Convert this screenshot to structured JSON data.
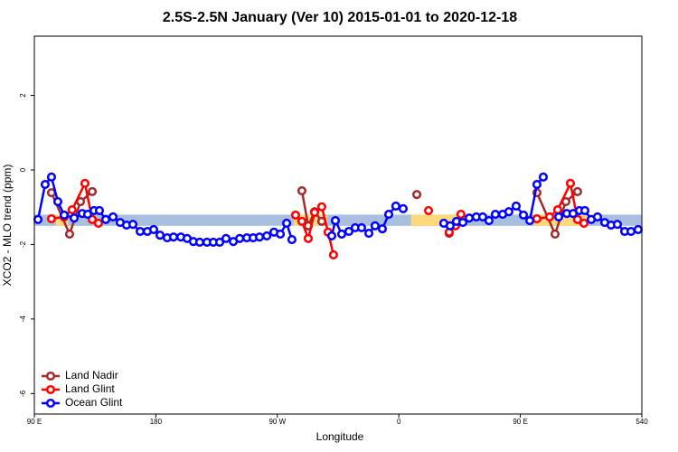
{
  "chart_data": {
    "type": "line",
    "title": "2.5S-2.5N January (Ver 10)   2015-01-01 to 2020-12-18",
    "x_label": "Longitude",
    "y_label": "XCO2 - MLO trend (ppm)",
    "xlim": [
      90,
      540
    ],
    "ylim": [
      -6.55,
      3.59
    ],
    "xticks": [
      {
        "value": 90,
        "label": "90 E"
      },
      180,
      {
        "value": 270,
        "label": "90 W"
      },
      {
        "value": 360,
        "label": "0"
      },
      {
        "value": 450,
        "label": "90 E"
      },
      540
    ],
    "yticks": [
      2,
      0,
      -2,
      -4,
      -6
    ],
    "legend": "bottomleft",
    "bands": [
      {
        "color": "#a9bfdf",
        "xlim": [
          90,
          540
        ],
        "ylim": [
          -1.5,
          -1.2
        ]
      }
    ],
    "highlights": [
      {
        "color": "#fdd87c",
        "xlim": [
          106,
          115
        ],
        "ylim": [
          -1.5,
          -1.2
        ]
      },
      {
        "color": "#fdd87c",
        "xlim": [
          282,
          307
        ],
        "ylim": [
          -1.5,
          -1.2
        ]
      },
      {
        "color": "#fdd87c",
        "xlim": [
          369,
          403
        ],
        "ylim": [
          -1.5,
          -1.2
        ]
      },
      {
        "color": "#fdd87c",
        "xlim": [
          460,
          500
        ],
        "ylim": [
          -1.5,
          -1.2
        ]
      }
    ],
    "series": [
      {
        "name": "Land Nadir",
        "color": "#a52a2a",
        "x": [
          102.7,
          116.1,
          124.2,
          132.9,
          null,
          288.2,
          292.9,
          297.6,
          302.9,
          null,
          373.3,
          null,
          397.3,
          null,
          462.3,
          475.7,
          483.7,
          492.4
        ],
        "values": [
          -0.61,
          -1.72,
          -0.85,
          -0.58,
          null,
          -0.56,
          -1.5,
          -1.12,
          -1.38,
          null,
          -0.66,
          null,
          -1.7,
          null,
          -0.61,
          -1.72,
          -0.85,
          -0.58
        ]
      },
      {
        "name": "Land Glint",
        "color": "#ff0000",
        "x": [
          102.7,
          112,
          118,
          127.5,
          132.9,
          137.5,
          null,
          283.5,
          288.2,
          292.9,
          297.6,
          302.9,
          307.6,
          311.6,
          null,
          382,
          null,
          397.3,
          402,
          406,
          null,
          462.3,
          471.7,
          477.7,
          487.1,
          492.4,
          497.1
        ],
        "values": [
          -1.31,
          -1.26,
          -1.07,
          -0.36,
          -1.33,
          -1.43,
          null,
          -1.21,
          -1.38,
          -1.84,
          -1.14,
          -0.99,
          -1.67,
          -2.28,
          null,
          -1.09,
          null,
          -1.67,
          -1.5,
          -1.19,
          null,
          -1.31,
          -1.26,
          -1.07,
          -0.36,
          -1.33,
          -1.43
        ]
      },
      {
        "name": "Ocean Glint",
        "color": "#0000ff",
        "x": [
          92.7,
          98,
          102.7,
          107.4,
          112.1,
          119.5,
          125.5,
          129.5,
          134.2,
          138.2,
          142.9,
          148.3,
          153.6,
          158.3,
          163,
          168.4,
          173.7,
          178.4,
          183.1,
          188.4,
          193.1,
          198.5,
          203.2,
          207.8,
          212.5,
          217.9,
          222.6,
          227.3,
          232,
          237.4,
          242.1,
          247.4,
          252.1,
          256.8,
          262.2,
          267.5,
          272.2,
          276.9,
          280.8,
          null,
          310.3,
          313,
          317.7,
          323,
          327.7,
          332.4,
          337.8,
          342.4,
          347.8,
          352.5,
          357.8,
          363.2,
          null,
          393.3,
          398,
          402.7,
          407.4,
          412.1,
          417.4,
          422.1,
          426.8,
          431.5,
          436.9,
          441.5,
          446.9,
          452.3,
          457,
          462.3,
          467,
          null,
          478.4,
          484.4,
          489.1,
          493.8,
          497.8,
          502.5,
          507.2,
          512.5,
          517.2,
          521.9,
          527.3,
          532,
          537.3
        ],
        "values": [
          -1.33,
          -0.39,
          -0.19,
          -0.85,
          -1.21,
          -1.29,
          -1.17,
          -1.19,
          -1.09,
          -1.09,
          -1.33,
          -1.26,
          -1.41,
          -1.48,
          -1.46,
          -1.65,
          -1.65,
          -1.6,
          -1.75,
          -1.82,
          -1.8,
          -1.8,
          -1.84,
          -1.92,
          -1.94,
          -1.94,
          -1.94,
          -1.94,
          -1.84,
          -1.92,
          -1.84,
          -1.82,
          -1.82,
          -1.8,
          -1.77,
          -1.67,
          -1.72,
          -1.43,
          -1.87,
          null,
          -1.77,
          -1.36,
          -1.72,
          -1.65,
          -1.55,
          -1.55,
          -1.7,
          -1.5,
          -1.58,
          -1.19,
          -0.97,
          -1.04,
          null,
          -1.43,
          -1.5,
          -1.38,
          -1.41,
          -1.29,
          -1.26,
          -1.26,
          -1.36,
          -1.19,
          -1.19,
          -1.12,
          -0.97,
          -1.21,
          -1.36,
          -0.39,
          -0.19,
          null,
          -1.26,
          -1.17,
          -1.17,
          -1.09,
          -1.09,
          -1.33,
          -1.26,
          -1.41,
          -1.48,
          -1.46,
          -1.65,
          -1.65,
          -1.6
        ]
      }
    ]
  }
}
